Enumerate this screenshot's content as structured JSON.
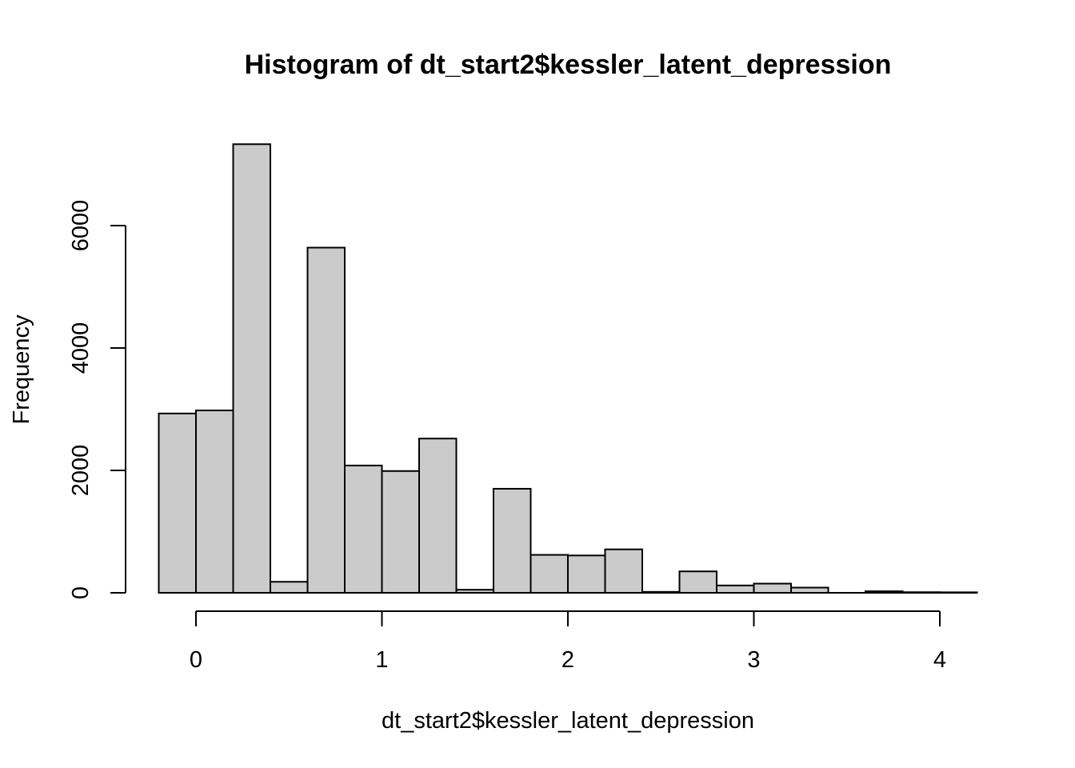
{
  "chart_data": {
    "type": "bar",
    "title": "Histogram of dt_start2$kessler_latent_depression",
    "xlabel": "dt_start2$kessler_latent_depression",
    "ylabel": "Frequency",
    "bin_width": 0.2,
    "bins": [
      {
        "x0": -0.2,
        "x1": 0.0,
        "count": 2930
      },
      {
        "x0": 0.0,
        "x1": 0.2,
        "count": 2980
      },
      {
        "x0": 0.2,
        "x1": 0.4,
        "count": 7330
      },
      {
        "x0": 0.4,
        "x1": 0.6,
        "count": 180
      },
      {
        "x0": 0.6,
        "x1": 0.8,
        "count": 5640
      },
      {
        "x0": 0.8,
        "x1": 1.0,
        "count": 2080
      },
      {
        "x0": 1.0,
        "x1": 1.2,
        "count": 1990
      },
      {
        "x0": 1.2,
        "x1": 1.4,
        "count": 2520
      },
      {
        "x0": 1.4,
        "x1": 1.6,
        "count": 50
      },
      {
        "x0": 1.6,
        "x1": 1.8,
        "count": 1700
      },
      {
        "x0": 1.8,
        "x1": 2.0,
        "count": 620
      },
      {
        "x0": 2.0,
        "x1": 2.2,
        "count": 610
      },
      {
        "x0": 2.2,
        "x1": 2.4,
        "count": 710
      },
      {
        "x0": 2.4,
        "x1": 2.6,
        "count": 15
      },
      {
        "x0": 2.6,
        "x1": 2.8,
        "count": 350
      },
      {
        "x0": 2.8,
        "x1": 3.0,
        "count": 120
      },
      {
        "x0": 3.0,
        "x1": 3.2,
        "count": 150
      },
      {
        "x0": 3.2,
        "x1": 3.4,
        "count": 85
      },
      {
        "x0": 3.4,
        "x1": 3.6,
        "count": 0
      },
      {
        "x0": 3.6,
        "x1": 3.8,
        "count": 25
      },
      {
        "x0": 3.8,
        "x1": 4.0,
        "count": 10
      },
      {
        "x0": 4.0,
        "x1": 4.2,
        "count": 8
      }
    ],
    "xticks": [
      0,
      1,
      2,
      3,
      4
    ],
    "yticks": [
      0,
      2000,
      4000,
      6000
    ],
    "xlim": [
      -0.2,
      4.2
    ],
    "ylim": [
      0,
      7330
    ],
    "grid": false
  }
}
